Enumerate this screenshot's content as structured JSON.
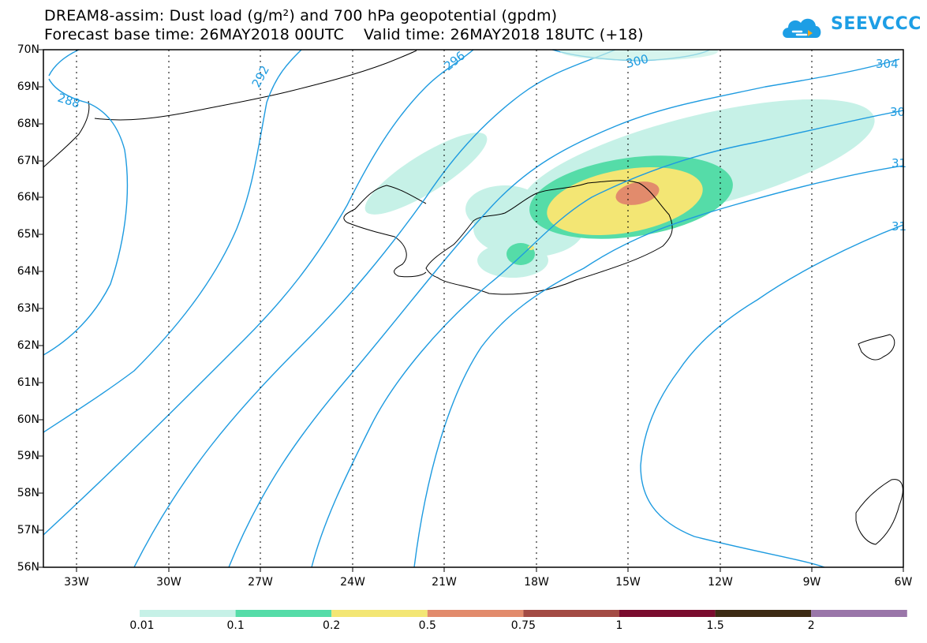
{
  "title": {
    "line1": "DREAM8-assim: Dust load (g/m²) and 700 hPa geopotential (gpdm)",
    "line2": "Forecast base time: 26MAY2018 00UTC    Valid time: 26MAY2018 18UTC (+18)"
  },
  "logo": {
    "text": "SEEVCCC",
    "icon": "cloud-icon",
    "color": "#1d9ee5"
  },
  "latitudes": [
    "70N",
    "69N",
    "68N",
    "67N",
    "66N",
    "65N",
    "64N",
    "63N",
    "62N",
    "61N",
    "60N",
    "59N",
    "58N",
    "57N",
    "56N"
  ],
  "longitudes": [
    "33W",
    "30W",
    "27W",
    "24W",
    "21W",
    "18W",
    "15W",
    "12W",
    "9W",
    "6W"
  ],
  "contour_labels": [
    "288",
    "292",
    "296",
    "300",
    "304",
    "30",
    "31",
    "31"
  ],
  "contour_color": "#1e9be0",
  "colorbar": {
    "labels": [
      "0.01",
      "0.1",
      "0.2",
      "0.5",
      "0.75",
      "1",
      "1.5",
      "2"
    ],
    "colors": [
      "#c6f1e7",
      "#55dca8",
      "#f3e674",
      "#e28b6c",
      "#a34b44",
      "#7a0c2e",
      "#3d2b14",
      "#9a76a9"
    ]
  }
}
